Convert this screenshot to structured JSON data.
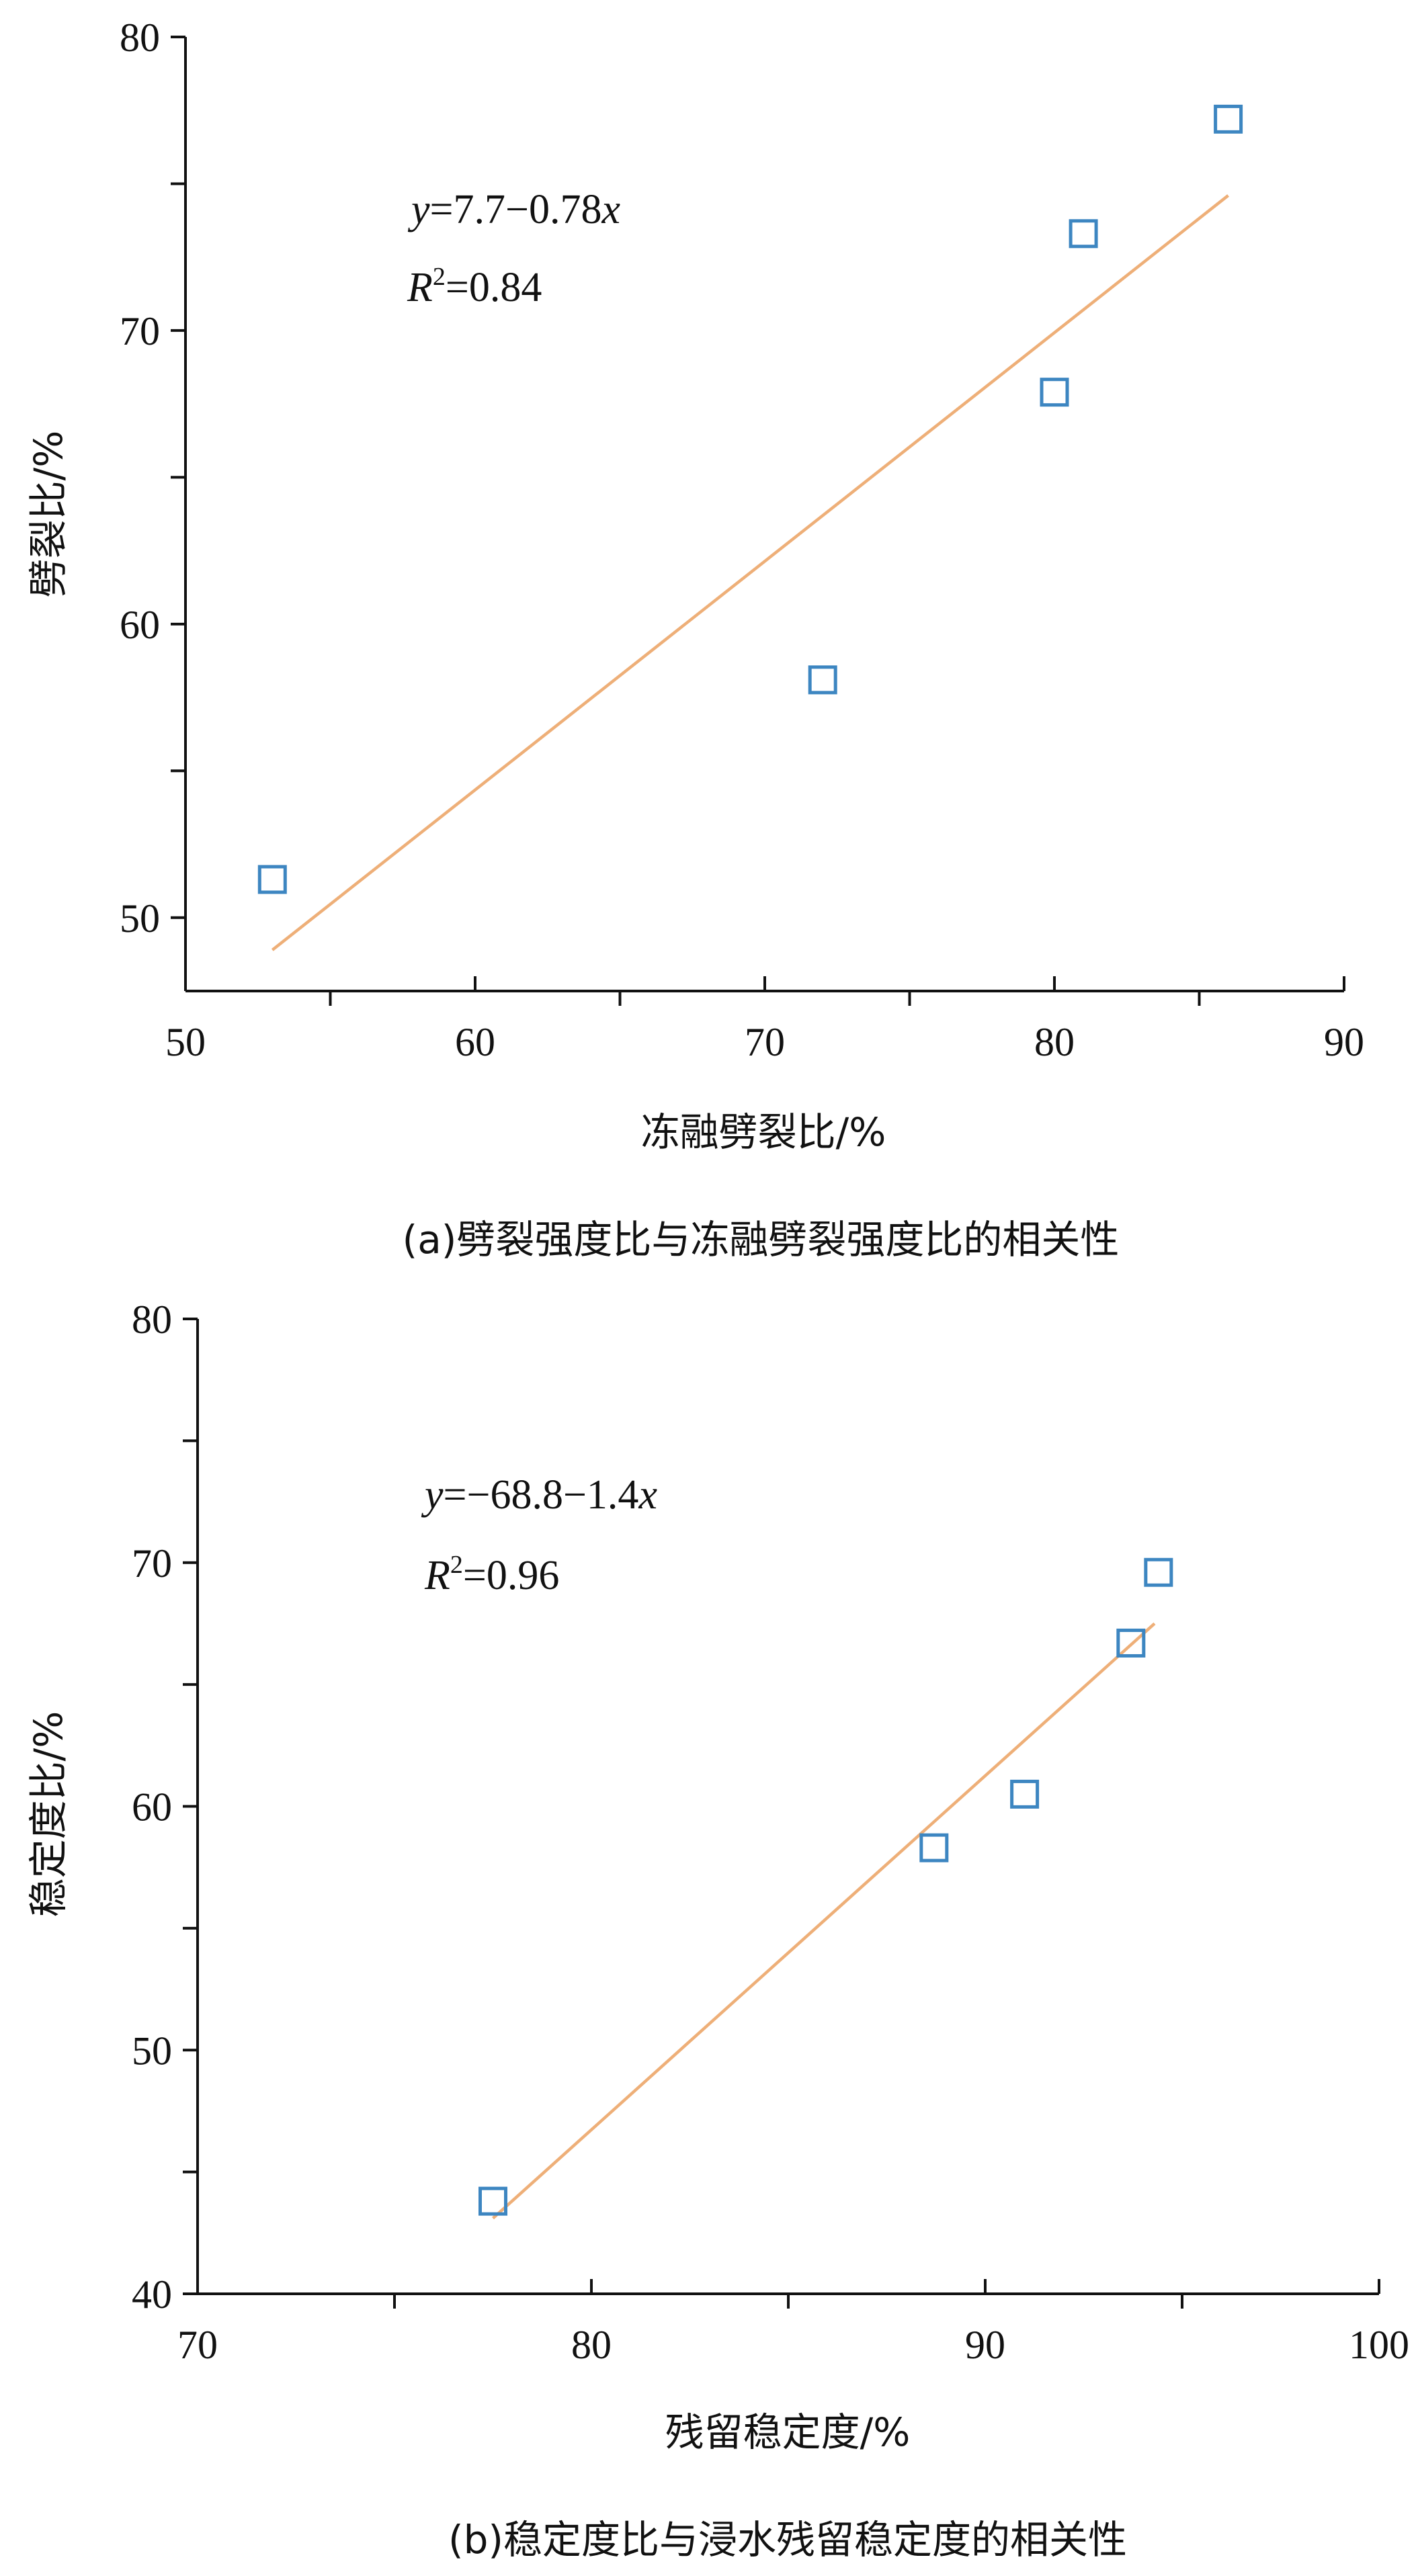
{
  "chart_data": [
    {
      "type": "scatter",
      "title": "",
      "caption": "(a)劈裂强度比与冻融劈裂强度比的相关性",
      "xlabel": "冻融劈裂比/%",
      "ylabel": "劈裂比/%",
      "xlim": [
        50,
        90
      ],
      "ylim": [
        47.5,
        80
      ],
      "x_ticks": [
        50,
        60,
        70,
        80,
        90
      ],
      "x_tick_labels": [
        "50",
        "60",
        "70",
        "80",
        "90"
      ],
      "x_minor_ticks": [
        55,
        65,
        75,
        85
      ],
      "y_ticks": [
        50,
        60,
        70,
        80
      ],
      "y_tick_labels": [
        "50",
        "60",
        "70",
        "80"
      ],
      "y_minor_ticks": [
        55,
        65,
        75
      ],
      "grid": false,
      "marker": "hollow-square",
      "marker_color": "#3d86c1",
      "points": [
        {
          "x": 53.0,
          "y": 51.3
        },
        {
          "x": 72.0,
          "y": 58.1
        },
        {
          "x": 80.0,
          "y": 67.9
        },
        {
          "x": 81.0,
          "y": 73.3
        },
        {
          "x": 86.0,
          "y": 77.2
        }
      ],
      "fit_line": {
        "x": [
          53.0,
          86.0
        ],
        "y": [
          48.9,
          74.6
        ],
        "color": "#eeaf78"
      },
      "equation_y": "y",
      "equation_rhs": "=7.7−0.78",
      "equation_x": "x",
      "r2_label": "R",
      "r2_sup": "2",
      "r2_value": "=0.84"
    },
    {
      "type": "scatter",
      "title": "",
      "caption": "(b)稳定度比与浸水残留稳定度的相关性",
      "xlabel": "残留稳定度/%",
      "ylabel": "稳定度比/%",
      "xlim": [
        70,
        100
      ],
      "ylim": [
        40,
        80
      ],
      "x_ticks": [
        70,
        80,
        90,
        100
      ],
      "x_tick_labels": [
        "70",
        "80",
        "90",
        "100"
      ],
      "x_minor_ticks": [
        75,
        85,
        95
      ],
      "y_ticks": [
        40,
        50,
        60,
        70,
        80
      ],
      "y_tick_labels": [
        "40",
        "50",
        "60",
        "70",
        "80"
      ],
      "y_minor_ticks": [
        45,
        55,
        65,
        75
      ],
      "grid": false,
      "marker": "hollow-square",
      "marker_color": "#3d86c1",
      "points": [
        {
          "x": 77.5,
          "y": 43.8
        },
        {
          "x": 88.7,
          "y": 58.3
        },
        {
          "x": 91.0,
          "y": 60.5
        },
        {
          "x": 93.7,
          "y": 66.7
        },
        {
          "x": 94.4,
          "y": 69.6
        }
      ],
      "fit_line": {
        "x": [
          77.5,
          94.3
        ],
        "y": [
          43.1,
          67.5
        ],
        "color": "#eeaf78"
      },
      "equation_y": "y",
      "equation_rhs": "=−68.8−1.4",
      "equation_x": "x",
      "r2_label": "R",
      "r2_sup": "2",
      "r2_value": "=0.96"
    }
  ]
}
